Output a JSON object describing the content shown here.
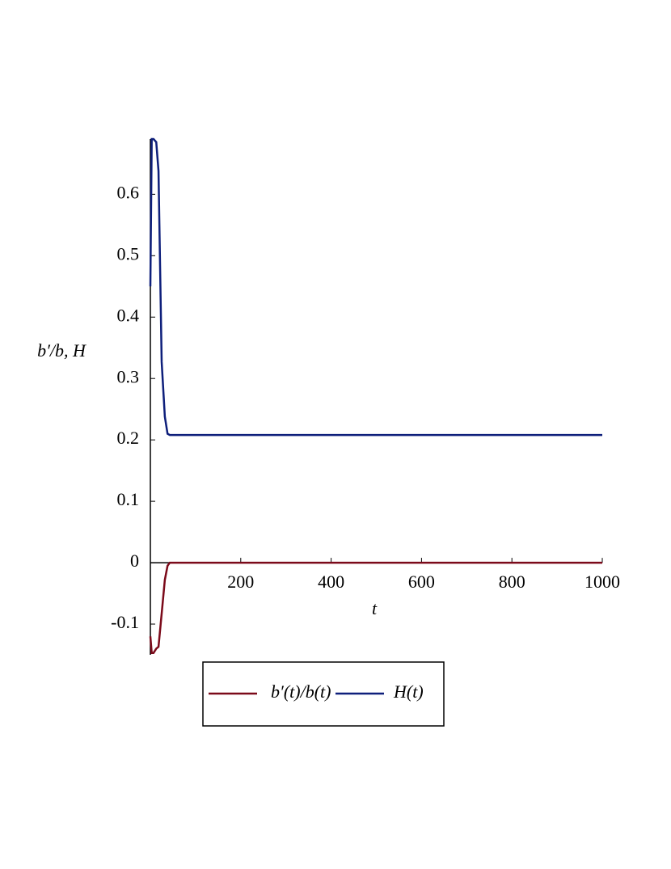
{
  "chart_data": {
    "type": "line",
    "x_label": "t",
    "y_label": "b′/b, H",
    "x": [
      0,
      3,
      7,
      13,
      18,
      25,
      32,
      38,
      43,
      100,
      1000
    ],
    "series": [
      {
        "name": "b′(t)/b(t)",
        "color": "#7b0a1a",
        "values": [
          -0.12,
          -0.147,
          -0.147,
          -0.14,
          -0.137,
          -0.083,
          -0.028,
          -0.005,
          0,
          0,
          0
        ]
      },
      {
        "name": "H(t)",
        "color": "#0e1f7b",
        "values": [
          0.45,
          0.69,
          0.69,
          0.685,
          0.638,
          0.327,
          0.238,
          0.21,
          0.208,
          0.208,
          0.208
        ]
      }
    ],
    "xlim": [
      0,
      1000
    ],
    "ylim": [
      -0.15,
      0.69
    ],
    "xticks": [
      200,
      400,
      600,
      800,
      1000
    ],
    "yticks": [
      -0.1,
      0,
      0.1,
      0.2,
      0.3,
      0.4,
      0.5,
      0.6
    ],
    "legend": "bottom"
  }
}
